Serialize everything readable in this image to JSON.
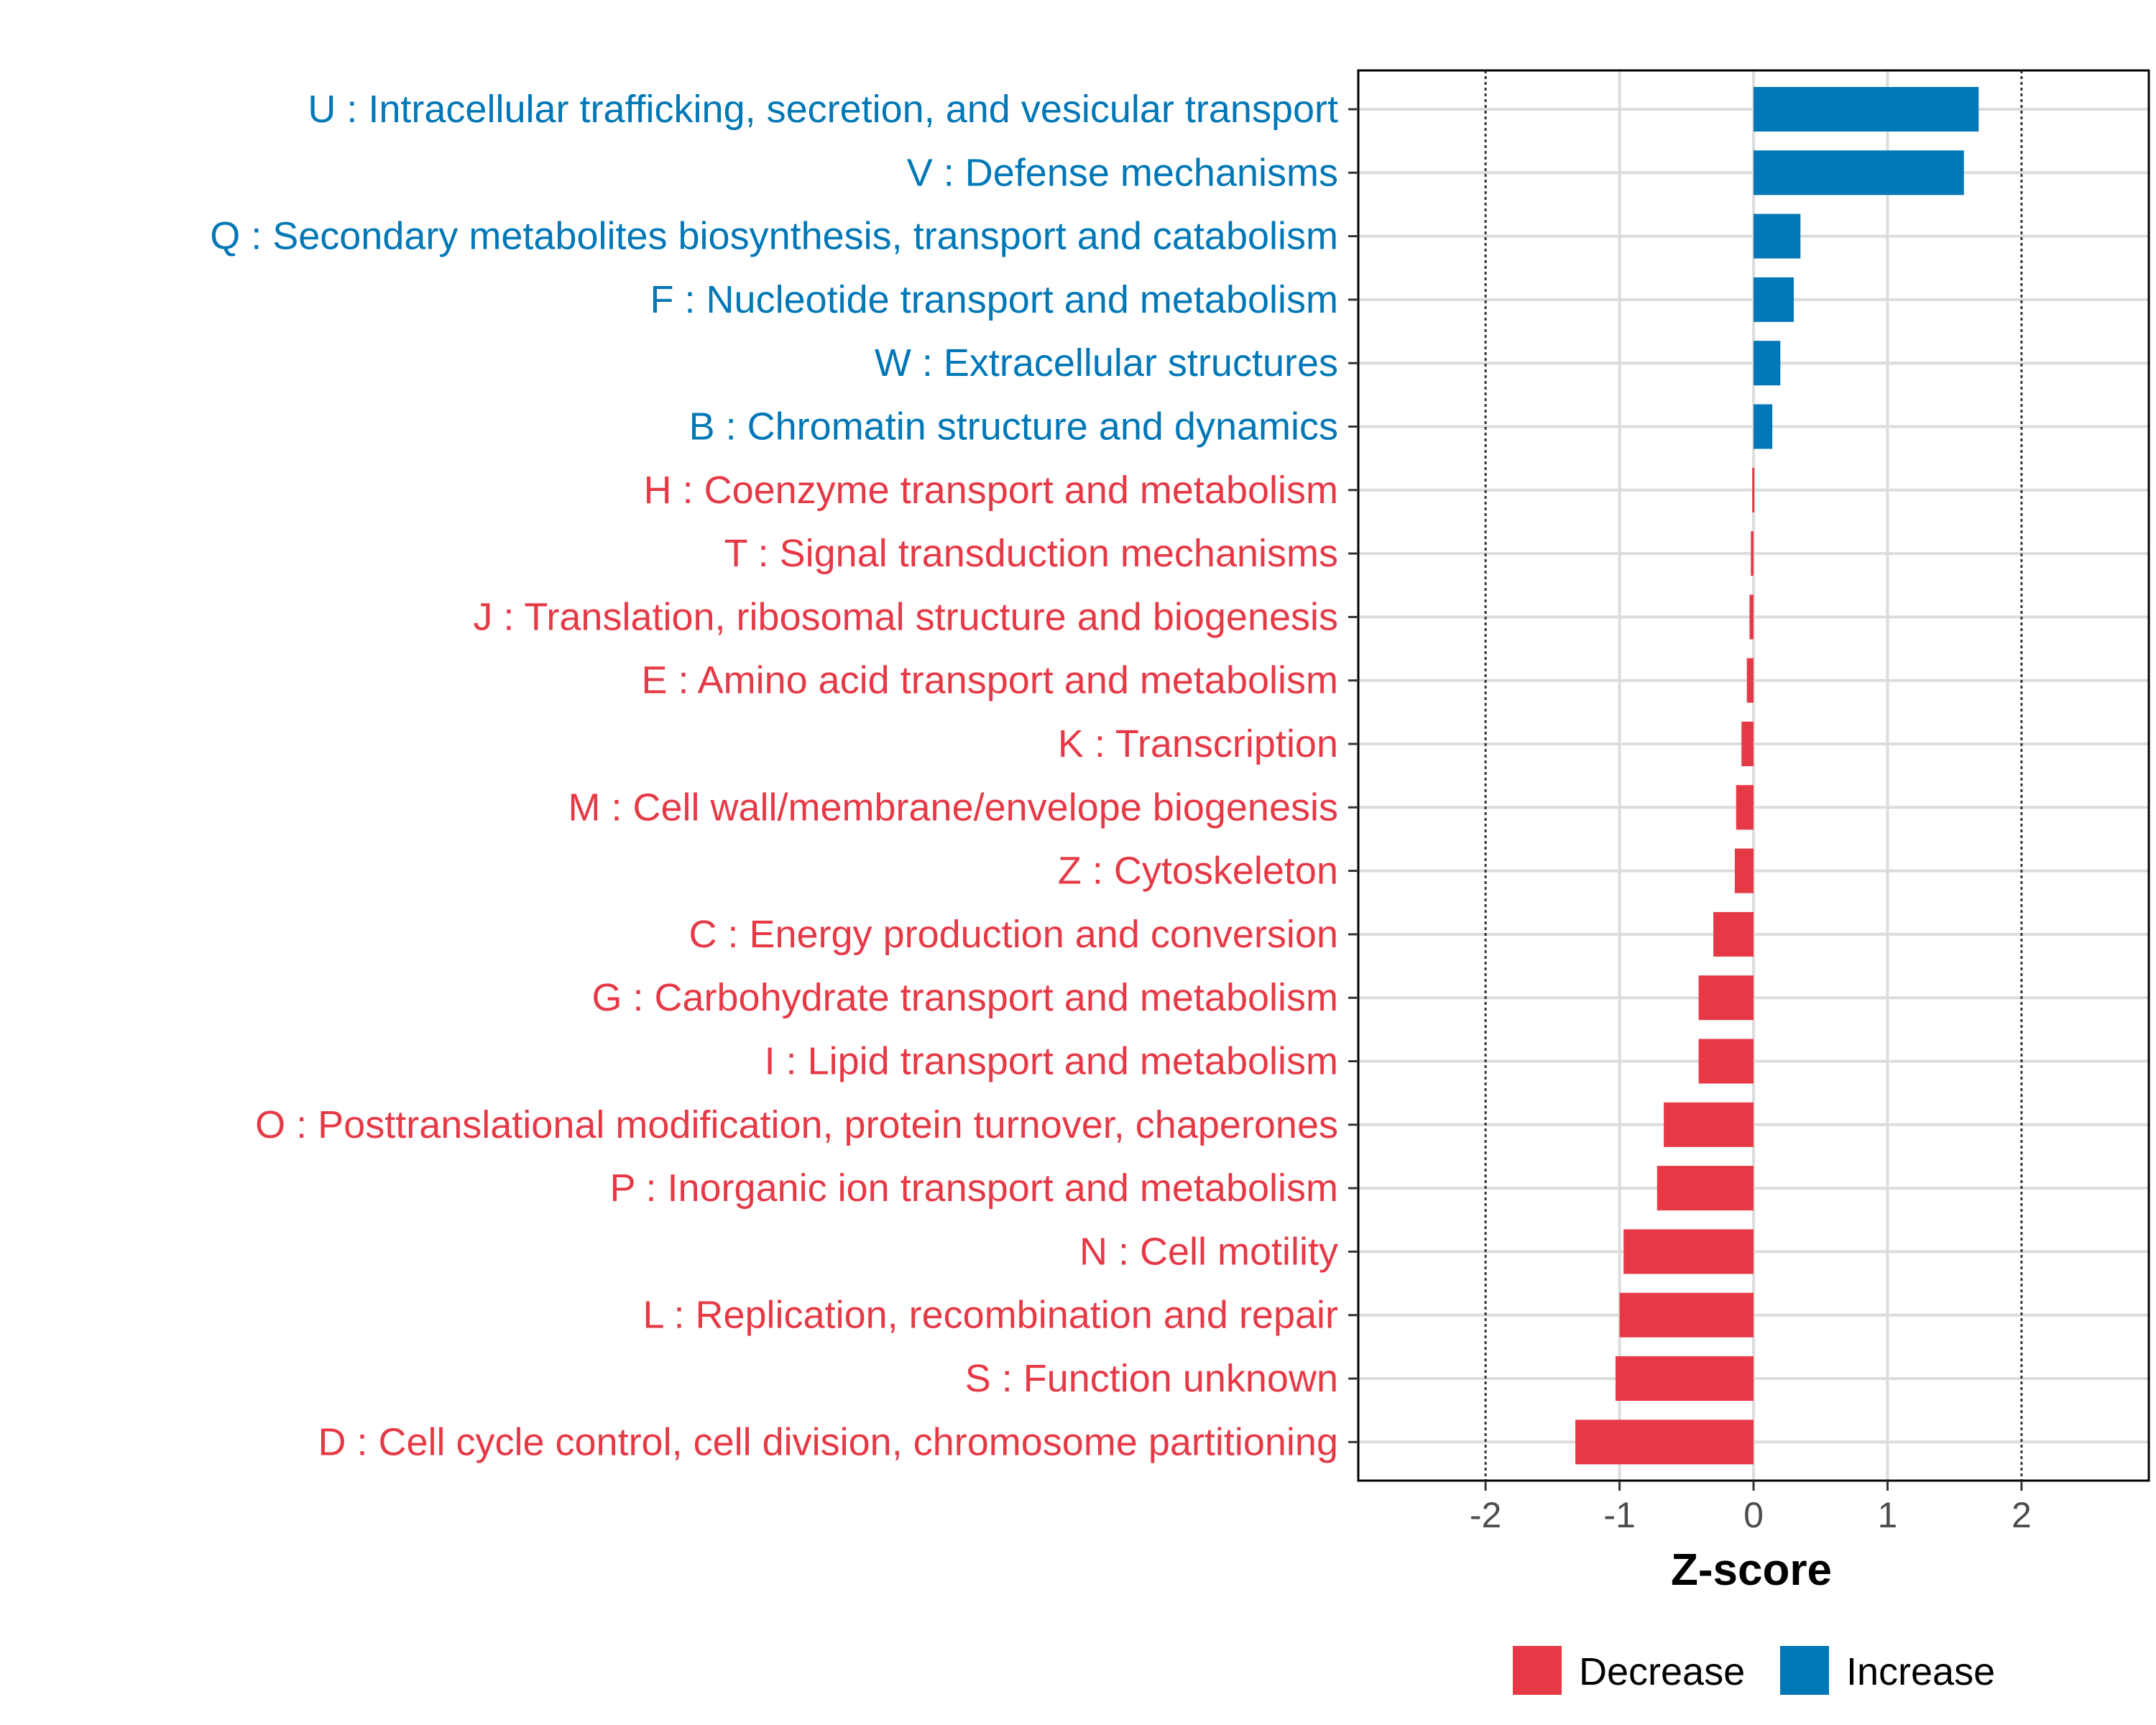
{
  "chart_data": {
    "type": "bar",
    "orientation": "horizontal",
    "title": "",
    "xlabel": "Z-score",
    "ylabel": "",
    "xlim": [
      -2.95,
      2.95
    ],
    "xticks": [
      -2,
      -1,
      0,
      1,
      2
    ],
    "reference_lines": [
      -2,
      2
    ],
    "grid": true,
    "legend_position": "bottom",
    "colors": {
      "Decrease": "#e63946",
      "Increase": "#0077b6"
    },
    "legend": [
      "Decrease",
      "Increase"
    ],
    "categories": [
      "U : Intracellular trafficking, secretion, and vesicular transport",
      "V : Defense mechanisms",
      "Q : Secondary metabolites biosynthesis, transport and catabolism",
      "F : Nucleotide transport and metabolism",
      "W : Extracellular structures",
      "B : Chromatin structure and dynamics",
      "H : Coenzyme transport and metabolism",
      "T : Signal transduction mechanisms",
      "J : Translation, ribosomal structure and biogenesis",
      "E : Amino acid transport and metabolism",
      "K : Transcription",
      "M : Cell wall/membrane/envelope biogenesis",
      "Z : Cytoskeleton",
      "C : Energy production and conversion",
      "G : Carbohydrate transport and metabolism",
      "I : Lipid transport and metabolism",
      "O : Posttranslational modification, protein turnover, chaperones",
      "P : Inorganic ion transport and metabolism",
      "N : Cell motility",
      "L : Replication, recombination and repair",
      "S : Function unknown",
      "D : Cell cycle control, cell division, chromosome partitioning"
    ],
    "values": [
      1.68,
      1.57,
      0.35,
      0.3,
      0.2,
      0.14,
      -0.01,
      -0.02,
      -0.03,
      -0.05,
      -0.09,
      -0.13,
      -0.14,
      -0.3,
      -0.41,
      -0.41,
      -0.67,
      -0.72,
      -0.97,
      -1.0,
      -1.03,
      -1.33
    ],
    "groups": [
      "Increase",
      "Increase",
      "Increase",
      "Increase",
      "Increase",
      "Increase",
      "Decrease",
      "Decrease",
      "Decrease",
      "Decrease",
      "Decrease",
      "Decrease",
      "Decrease",
      "Decrease",
      "Decrease",
      "Decrease",
      "Decrease",
      "Decrease",
      "Decrease",
      "Decrease",
      "Decrease",
      "Decrease"
    ]
  }
}
